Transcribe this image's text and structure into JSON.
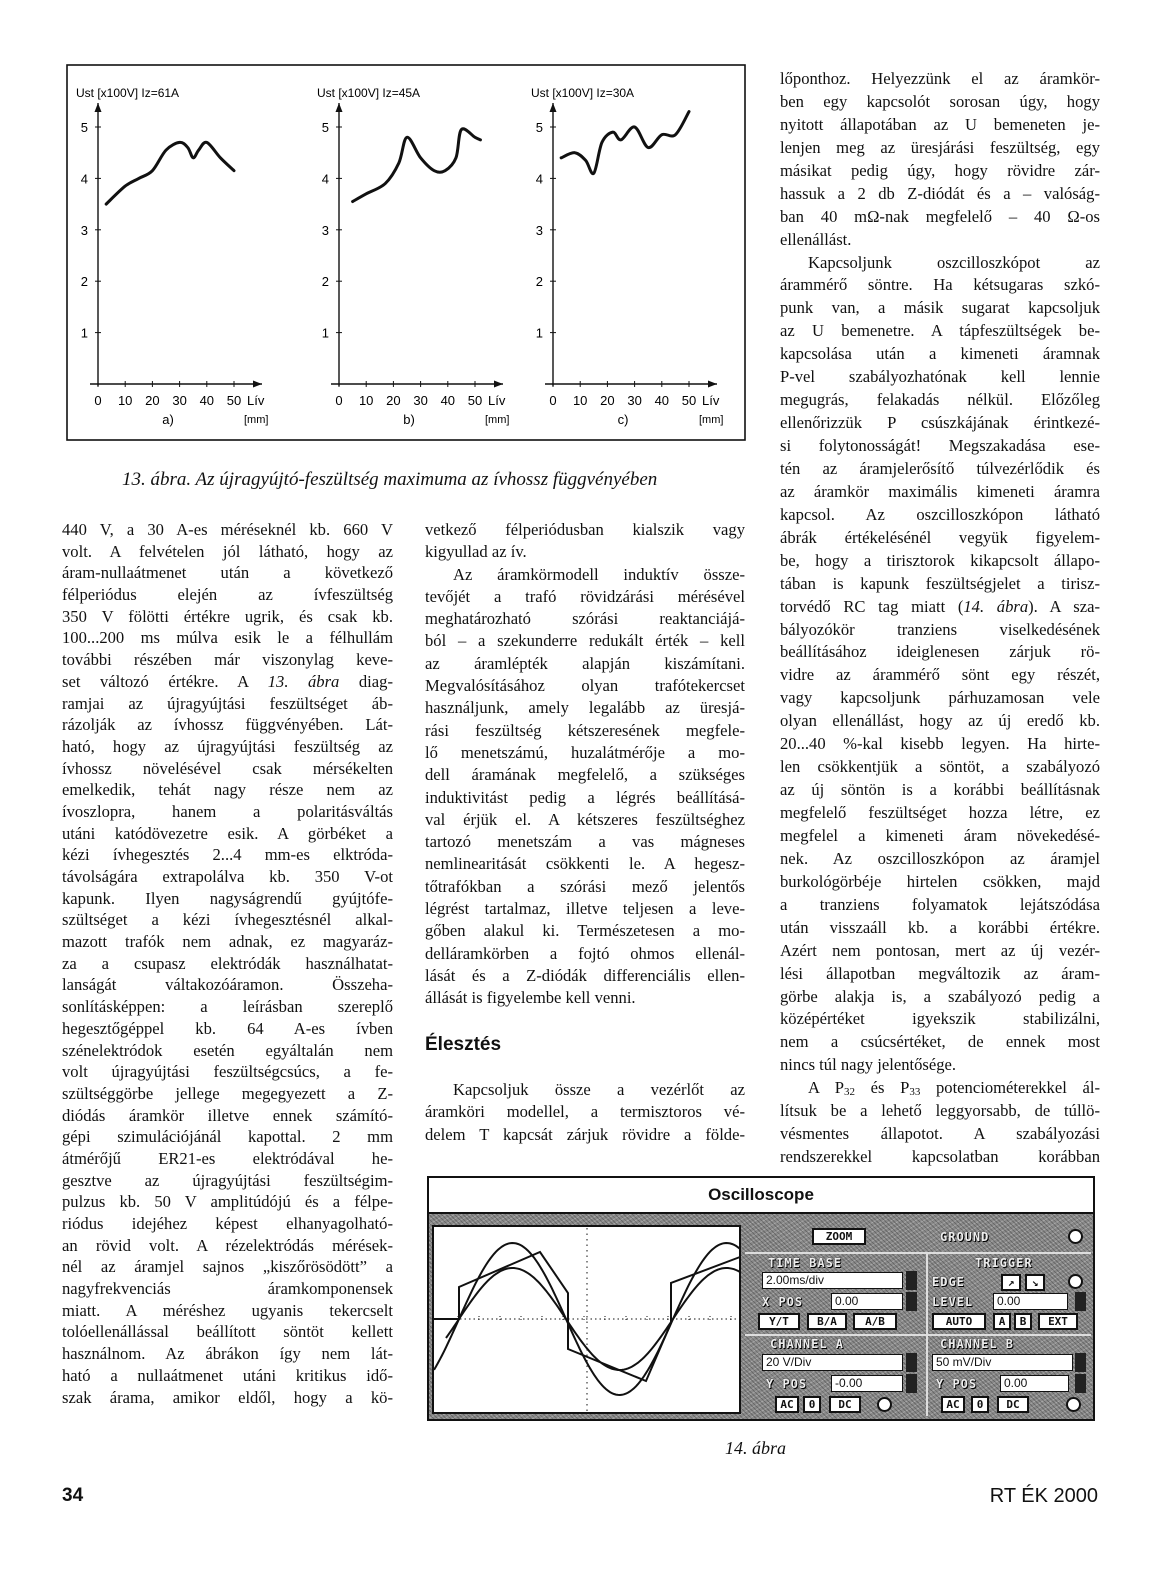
{
  "figure13": {
    "caption": "13. ábra. Az újragyújtó-feszültség maximuma az ívhossz függvényében"
  },
  "chart_data": [
    {
      "type": "line",
      "panel_label": "a)",
      "title": "Ust [x100V]  Iz=61A",
      "xlabel": "Lív",
      "xunit": "[mm]",
      "xticks": [
        "0",
        "10",
        "20",
        "30",
        "40",
        "50"
      ],
      "yticks": [
        "1",
        "2",
        "3",
        "4",
        "5"
      ],
      "xlim": [
        0,
        50
      ],
      "ylim": [
        0,
        5
      ],
      "x": [
        3,
        10,
        15,
        20,
        25,
        30,
        33,
        35,
        37,
        40,
        45,
        50
      ],
      "y": [
        3.5,
        3.85,
        4.0,
        4.15,
        4.55,
        4.7,
        4.6,
        4.4,
        4.55,
        4.7,
        4.4,
        4.15
      ]
    },
    {
      "type": "line",
      "panel_label": "b)",
      "title": "Ust [x100V]  Iz=45A",
      "xlabel": "Lív",
      "xunit": "[mm]",
      "xticks": [
        "0",
        "10",
        "20",
        "30",
        "40",
        "50"
      ],
      "yticks": [
        "1",
        "2",
        "3",
        "4",
        "5"
      ],
      "xlim": [
        0,
        50
      ],
      "ylim": [
        0,
        5
      ],
      "x": [
        5,
        10,
        17,
        22,
        25,
        30,
        35,
        39,
        43,
        45,
        50,
        52
      ],
      "y": [
        3.55,
        3.7,
        3.9,
        4.3,
        4.8,
        4.4,
        4.15,
        4.15,
        4.4,
        4.95,
        4.8,
        4.75
      ]
    },
    {
      "type": "line",
      "panel_label": "c)",
      "title": "Ust [x100V]  Iz=30A",
      "xlabel": "Lív",
      "xunit": "[mm]",
      "xticks": [
        "0",
        "10",
        "20",
        "30",
        "40",
        "50"
      ],
      "yticks": [
        "1",
        "2",
        "3",
        "4",
        "5"
      ],
      "xlim": [
        0,
        50
      ],
      "ylim": [
        0,
        5
      ],
      "x": [
        3,
        8,
        12,
        15,
        18,
        22,
        25,
        30,
        35,
        40,
        45,
        50
      ],
      "y": [
        4.4,
        4.5,
        4.35,
        4.1,
        4.7,
        4.9,
        4.75,
        5.0,
        4.6,
        4.85,
        4.85,
        5.3
      ]
    }
  ],
  "columns": [
    {
      "id": "col1",
      "blocks": [
        {
          "indent": false,
          "end": false,
          "lines": [
            "440 V, a 30 A-es méréseknél kb. 660 V",
            "volt. A felvételen jól látható, hogy az",
            "áram-nullaátmenet után a következő",
            "félperiódus elején az ívfeszültség",
            "350 V fölötti értékre ugrik, és csak kb.",
            "100...200 ms múlva esik le a félhullám",
            "további részében már viszonylag keve-",
            [
              {
                "text": "set változó értékre. A "
              },
              {
                "text": "13. ábra",
                "style": "italic"
              },
              {
                "text": " diag-"
              }
            ],
            "ramjai az újragyújtási feszültséget áb-",
            "rázolják az ívhossz függvényében. Lát-",
            "ható, hogy az újragyújtási feszültség az",
            "ívhossz növelésével csak mérsékelten",
            "emelkedik, tehát nagy része nem az",
            "ívoszlopra, hanem a polaritásváltás",
            "utáni katódövezetre esik. A görbéket a",
            "kézi ívhegesztés 2...4 mm-es elktróda-",
            "távolságára extrapolálva kb. 350 V-ot",
            "kapunk. Ilyen nagyságrendű gyújtófe-",
            "szültséget a kézi ívhegesztésnél alkal-",
            "mazott trafók nem adnak, ez magyaráz-",
            "za a csupasz elektródák használhatat-",
            "lanságát váltakozóáramon. Összeha-",
            "sonlításképpen: a leírásban szereplő",
            "hegesztőgéppel kb. 64 A-es ívben",
            "szénelektródok esetén egyáltalán nem",
            "volt újragyújtási feszültségcsúcs, a fe-",
            "szültséggörbe jellege megegyezett a Z-",
            "diódás áramkör illetve ennek számító-",
            "gépi szimulációjánál kapottal. 2 mm",
            "átmérőjű ER21-es elektródával he-",
            "gesztve az újragyújtási feszültségim-",
            "pulzus kb. 50 V amplitúdójú és a félpe-",
            "riódus idejéhez képest elhanyagolható-",
            "an rövid volt. A rézelektródás mérések-",
            "nél az áramjel sajnos „kiszőrösödött” a",
            "nagyfrekvenciás áramkomponensek",
            "miatt. A méréshez ugyanis tekercselt",
            "tolóellenállással beállított söntöt kellett",
            "használnom. Az ábrákon így nem lát-",
            "ható a nullaátmenet utáni kritikus idő-",
            "szak árama, amikor eldől, hogy a kö-"
          ]
        }
      ]
    },
    {
      "id": "col2",
      "blocks": [
        {
          "indent": false,
          "end": true,
          "lines": [
            "vetkező félperiódusban kialszik vagy",
            "kigyullad az ív."
          ]
        },
        {
          "indent": true,
          "end": true,
          "lines": [
            "Az áramkörmodell induktív össze-",
            "tevőjét a trafó rövidzárási mérésével",
            "meghatározható szórási reaktanciájá-",
            "ból – a szekunderre redukált érték – kell",
            "az áramlépték alapján kiszámítani.",
            "Megvalósításához olyan trafótekercset",
            "használjunk, amely legalább az üresjá-",
            "rási feszültség kétszeresének megfele-",
            "lő menetszámú, huzalátmérője a mo-",
            "dell áramának megfelelő, a szükséges",
            "induktivitást pedig a légrés beállításá-",
            "val érjük el. A kétszeres feszültséghez",
            "tartozó menetszám a vas mágneses",
            "nemlinearitását csökkenti le. A hegesz-",
            "tőtrafókban a szórási mező jelentős",
            "légrést tartalmaz, illetve teljesen a leve-",
            "gőben alakul ki. Természetesen a mo-",
            "delláramkörben a fojtó ohmos ellenál-",
            "lását és a Z-diódák differenciális ellen-",
            "állását is figyelembe kell venni."
          ]
        }
      ]
    },
    {
      "id": "col2b",
      "blocks": [
        {
          "indent": true,
          "end": false,
          "lines": [
            "Kapcsoljuk össze a vezérlőt az",
            "áramköri modellel, a termisztoros vé-",
            "delem T kapcsát zárjuk rövidre a földe-"
          ]
        }
      ]
    },
    {
      "id": "col3",
      "blocks": [
        {
          "indent": false,
          "end": true,
          "lines": [
            "lőponthoz. Helyezzünk el az áramkör-",
            "ben egy kapcsolót sorosan úgy, hogy",
            "nyitott állapotában az U bemeneten je-",
            "lenjen meg az üresjárási feszültség, egy",
            "másikat pedig úgy, hogy rövidre zár-",
            "hassuk a 2 db Z-diódát és a – valóság-",
            "ban 40 mΩ-nak megfelelő – 40 Ω-os",
            "ellenállást."
          ]
        },
        {
          "indent": true,
          "end": true,
          "lines": [
            "Kapcsoljunk oszcilloszkópot az",
            "árammérő söntre. Ha kétsugaras szkó-",
            "punk van, a másik sugarat kapcsoljuk",
            "az U bemenetre. A tápfeszültségek be-",
            "kapcsolása után a kimeneti áramnak",
            "P-vel szabályozhatónak kell lennie",
            "megugrás, felakadás nélkül. Előzőleg",
            "ellenőrizzük P csúszkájának érintkezé-",
            "si folytonosságát! Megszakadása ese-",
            "tén az áramjelerősítő túlvezérlődik és",
            "az áramkör maximális kimeneti áramra",
            "kapcsol. Az oszcilloszkópon látható",
            "ábrák értékelésénél vegyük figyelem-",
            "be, hogy a tirisztorok kikapcsolt állapo-",
            "tában is kapunk feszültségjelet a tirisz-",
            [
              {
                "text": "torvédő RC tag miatt ("
              },
              {
                "text": "14. ábra",
                "style": "italic"
              },
              {
                "text": "). A sza-"
              }
            ],
            "bályozókör tranziens viselkedésének",
            "beállításához ideiglenesen zárjuk rö-",
            "vidre az árammérő sönt egy részét,",
            "vagy kapcsoljunk párhuzamosan vele",
            "olyan ellenállást, hogy az új eredő kb.",
            "20...40 %-kal kisebb legyen. Ha hirte-",
            "len csökkentjük a söntöt, a szabályozó",
            "az új söntön is a korábbi beállításnak",
            "megfelelő feszültséget hozza létre, ez",
            "megfelel a kimeneti áram növekedésé-",
            "nek. Az oszcilloszkópon az áramjel",
            "burkológörbéje hirtelen csökken, majd",
            "a tranziens folyamatok lejátszódása",
            "után visszaáll kb. a korábbi értékre.",
            "Azért nem pontosan, mert az új vezér-",
            "lési állapotban megváltozik az áram-",
            "görbe alakja is, a szabályozó pedig a",
            "középértéket igyekszik stabilizálni,",
            "nem a csúcsértéket, de ennek most",
            "nincs túl nagy jelentősége."
          ]
        },
        {
          "indent": true,
          "end": false,
          "lines": [
            [
              {
                "text": "A P"
              },
              {
                "text": "32",
                "style": "sub"
              },
              {
                "text": " és P"
              },
              {
                "text": "33",
                "style": "sub"
              },
              {
                "text": " potenciométerekkel ál-"
              }
            ],
            "lítsuk be a lehető leggyorsabb, de túllö-",
            "vésmentes állapotot. A szabályozási",
            "rendszerekkel kapcsolatban korábban"
          ]
        }
      ]
    }
  ],
  "section_heading": "Élesztés",
  "oscilloscope": {
    "title": "Oscilloscope",
    "zoom_label": "ZOOM",
    "ground_label": "GROUND",
    "timebase": {
      "label": "TIME BASE",
      "value": "2.00ms/div",
      "xpos_label": "X POS",
      "xpos_value": "0.00",
      "modes": [
        "Y/T",
        "B/A",
        "A/B"
      ]
    },
    "trigger": {
      "label": "TRIGGER",
      "edge_label": "EDGE",
      "level_label": "LEVEL",
      "level_value": "0.00",
      "sources": [
        "AUTO",
        "A",
        "B",
        "EXT"
      ]
    },
    "channel_a": {
      "label": "CHANNEL A",
      "value": "20 V/Div",
      "ypos_label": "Y POS",
      "ypos_value": "-0.00",
      "coupling": [
        "AC",
        "0",
        "DC"
      ]
    },
    "channel_b": {
      "label": "CHANNEL B",
      "value": "50 mV/Div",
      "ypos_label": "Y POS",
      "ypos_value": "0.00",
      "coupling": [
        "AC",
        "0",
        "DC"
      ]
    }
  },
  "figure14": {
    "caption": "14. ábra"
  },
  "footer": {
    "page_number": "34",
    "publication": "RT ÉK 2000"
  }
}
